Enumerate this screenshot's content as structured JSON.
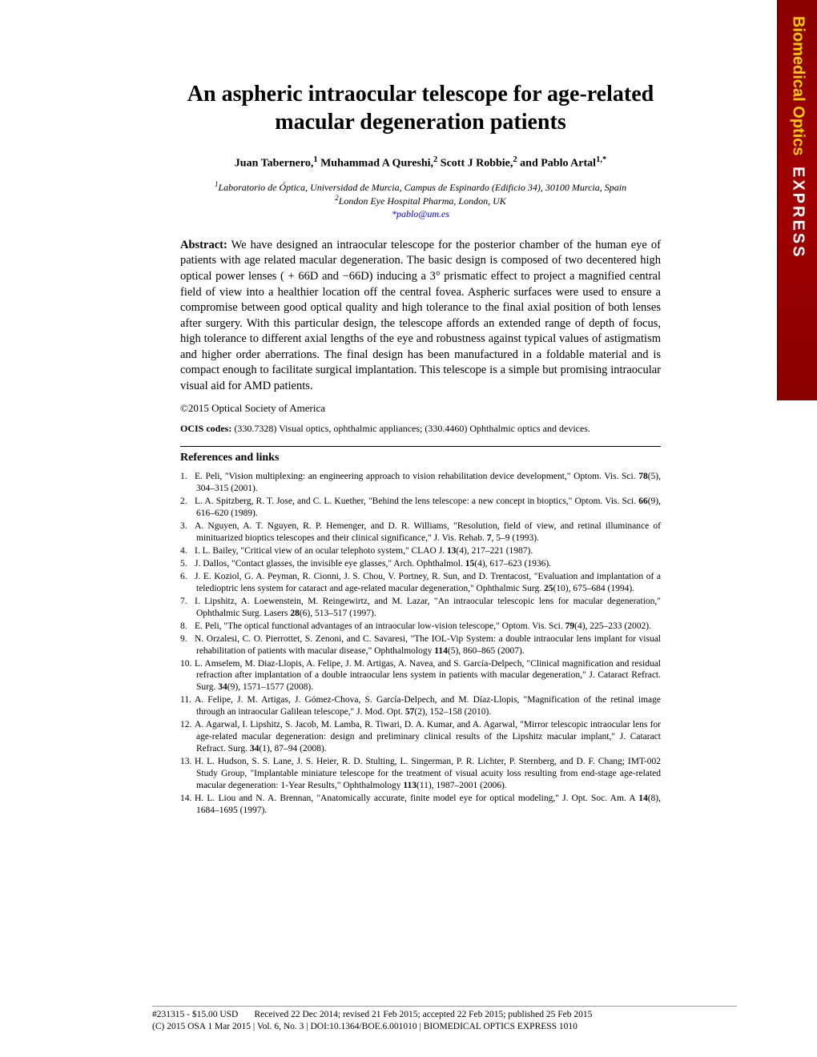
{
  "sidebar": {
    "brand1": "Biomedical Optics",
    "brand2": "EXPRESS",
    "bg_gradient": [
      "#8b0000",
      "#a00000"
    ],
    "brand1_color": "#ffcc00",
    "brand2_color": "#ffffff"
  },
  "title": "An aspheric intraocular telescope for age-related macular degeneration patients",
  "authors_html": "Juan Tabernero,<sup>1</sup> Muhammad A Qureshi,<sup>2</sup> Scott J Robbie,<sup>2</sup> and Pablo Artal<sup>1,*</sup>",
  "affiliations": [
    "<sup>1</sup>Laboratorio de Óptica, Universidad de Murcia, Campus de Espinardo (Edificio 34), 30100 Murcia, Spain",
    "<sup>2</sup>London Eye Hospital Pharma, London, UK"
  ],
  "email": "*pablo@um.es",
  "abstract_label": "Abstract:",
  "abstract": "We have designed an intraocular telescope for the posterior chamber of the human eye of patients with age related macular degeneration. The basic design is composed of two decentered high optical power lenses ( + 66D and −66D) inducing a 3° prismatic effect to project a magnified central field of view into a healthier location off the central fovea. Aspheric surfaces were used to ensure a compromise between good optical quality and high tolerance to the final axial position of both lenses after surgery. With this particular design, the telescope affords an extended range of depth of focus, high tolerance to different axial lengths of the eye and robustness against typical values of astigmatism and higher order aberrations. The final design has been manufactured in a foldable material and is compact enough to facilitate surgical implantation. This telescope is a simple but promising intraocular visual aid for AMD patients.",
  "copyright": "©2015 Optical Society of America",
  "ocis_label": "OCIS codes:",
  "ocis": "(330.7328) Visual optics, ophthalmic appliances; (330.4460) Ophthalmic optics and devices.",
  "refs_heading": "References and links",
  "references": [
    "E. Peli, \"Vision multiplexing: an engineering approach to vision rehabilitation device development,\" Optom. Vis. Sci. <b>78</b>(5), 304–315 (2001).",
    "L. A. Spitzberg, R. T. Jose, and C. L. Kuether, \"Behind the lens telescope: a new concept in bioptics,\" Optom. Vis. Sci. <b>66</b>(9), 616–620 (1989).",
    "A. Nguyen, A. T. Nguyen, R. P. Hemenger, and D. R. Williams, \"Resolution, field of view, and retinal illuminance of minituarized bioptics telescopes and their clinical significance,\" J. Vis. Rehab. <b>7</b>, 5–9 (1993).",
    "I. L. Bailey, \"Critical view of an ocular telephoto system,\" CLAO J. <b>13</b>(4), 217–221 (1987).",
    "J. Dallos, \"Contact glasses, the invisible eye glasses,\" Arch. Ophthalmol. <b>15</b>(4), 617–623 (1936).",
    "J. E. Koziol, G. A. Peyman, R. Cionni, J. S. Chou, V. Portney, R. Sun, and D. Trentacost, \"Evaluation and implantation of a teledioptric lens system for cataract and age-related macular degeneration,\" Ophthalmic Surg. <b>25</b>(10), 675–684 (1994).",
    "I. Lipshitz, A. Loewenstein, M. Reingewirtz, and M. Lazar, \"An intraocular telescopic lens for macular degeneration,\" Ophthalmic Surg. Lasers <b>28</b>(6), 513–517 (1997).",
    "E. Peli, \"The optical functional advantages of an intraocular low-vision telescope,\" Optom. Vis. Sci. <b>79</b>(4), 225–233 (2002).",
    "N. Orzalesi, C. O. Pierrottet, S. Zenoni, and C. Savaresi, \"The IOL-Vip System: a double intraocular lens implant for visual rehabilitation of patients with macular disease,\" Ophthalmology <b>114</b>(5), 860–865 (2007).",
    "L. Amselem, M. Diaz-Llopis, A. Felipe, J. M. Artigas, A. Navea, and S. García-Delpech, \"Clinical magnification and residual refraction after implantation of a double intraocular lens system in patients with macular degeneration,\" J. Cataract Refract. Surg. <b>34</b>(9), 1571–1577 (2008).",
    "A. Felipe, J. M. Artigas, J. Gómez-Chova, S. García-Delpech, and M. Díaz-Llopis, \"Magnification of the retinal image through an intraocular Galilean telescope,\" J. Mod. Opt. <b>57</b>(2), 152–158 (2010).",
    "A. Agarwal, I. Lipshitz, S. Jacob, M. Lamba, R. Tiwari, D. A. Kumar, and A. Agarwal, \"Mirror telescopic intraocular lens for age-related macular degeneration: design and preliminary clinical results of the Lipshitz macular implant,\" J. Cataract Refract. Surg. <b>34</b>(1), 87–94 (2008).",
    "H. L. Hudson, S. S. Lane, J. S. Heier, R. D. Stulting, L. Singerman, P. R. Lichter, P. Sternberg, and D. F. Chang; IMT-002 Study Group, \"Implantable miniature telescope for the treatment of visual acuity loss resulting from end-stage age-related macular degeneration: 1-Year Results,\" Ophthalmology <b>113</b>(11), 1987–2001 (2006).",
    "H. L. Liou and N. A. Brennan, \"Anatomically accurate, finite model eye for optical modeling,\" J. Opt. Soc. Am. A <b>14</b>(8), 1684–1695 (1997)."
  ],
  "footer": {
    "line1_left": "#231315 - $15.00 USD",
    "line1_right": "Received 22 Dec 2014; revised 21 Feb 2015; accepted 22 Feb 2015; published 25 Feb 2015",
    "line2": "(C) 2015 OSA    1 Mar 2015 | Vol. 6, No. 3 | DOI:10.1364/BOE.6.001010 | BIOMEDICAL OPTICS EXPRESS 1010"
  },
  "typography": {
    "title_fontsize": 28,
    "body_fontsize": 14.5,
    "ref_fontsize": 11.5,
    "font_family": "Times New Roman"
  },
  "colors": {
    "background": "#ffffff",
    "text": "#000000",
    "link": "#0000cc"
  }
}
